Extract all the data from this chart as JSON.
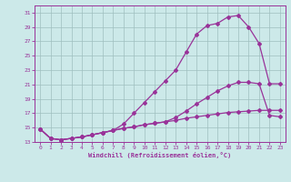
{
  "xlabel": "Windchill (Refroidissement éolien,°C)",
  "background_color": "#cce9e9",
  "grid_color": "#9fbfbf",
  "line_color": "#993399",
  "xlim": [
    -0.5,
    23.5
  ],
  "ylim": [
    13,
    32
  ],
  "yticks": [
    13,
    15,
    17,
    19,
    21,
    23,
    25,
    27,
    29,
    31
  ],
  "xticks": [
    0,
    1,
    2,
    3,
    4,
    5,
    6,
    7,
    8,
    9,
    10,
    11,
    12,
    13,
    14,
    15,
    16,
    17,
    18,
    19,
    20,
    21,
    22,
    23
  ],
  "line1_x": [
    0,
    1,
    2,
    3,
    4,
    5,
    6,
    7,
    8,
    9,
    10,
    11,
    12,
    13,
    14,
    15,
    16,
    17,
    18,
    19,
    20,
    21,
    22,
    23
  ],
  "line1_y": [
    14.8,
    13.5,
    13.3,
    13.5,
    13.7,
    14.0,
    14.3,
    14.6,
    14.9,
    15.1,
    15.4,
    15.6,
    15.8,
    16.0,
    16.3,
    16.5,
    16.7,
    16.9,
    17.1,
    17.2,
    17.3,
    17.4,
    17.4,
    17.4
  ],
  "line2_x": [
    0,
    1,
    2,
    3,
    4,
    5,
    6,
    7,
    8,
    9,
    10,
    11,
    12,
    13,
    14,
    15,
    16,
    17,
    18,
    19,
    20,
    21,
    22,
    23
  ],
  "line2_y": [
    14.8,
    13.5,
    13.3,
    13.5,
    13.7,
    14.0,
    14.3,
    14.6,
    14.9,
    15.1,
    15.4,
    15.6,
    15.8,
    16.4,
    17.3,
    18.3,
    19.2,
    20.1,
    20.8,
    21.3,
    21.3,
    21.1,
    16.7,
    16.5
  ],
  "line3_x": [
    0,
    1,
    2,
    3,
    4,
    5,
    6,
    7,
    8,
    9,
    10,
    11,
    12,
    13,
    14,
    15,
    16,
    17,
    18,
    19,
    20,
    21,
    22,
    23
  ],
  "line3_y": [
    14.8,
    13.5,
    13.3,
    13.5,
    13.7,
    14.0,
    14.3,
    14.6,
    15.5,
    17.0,
    18.5,
    20.0,
    21.5,
    23.0,
    25.5,
    28.0,
    29.2,
    29.5,
    30.4,
    30.6,
    29.0,
    26.7,
    21.1,
    21.1
  ]
}
